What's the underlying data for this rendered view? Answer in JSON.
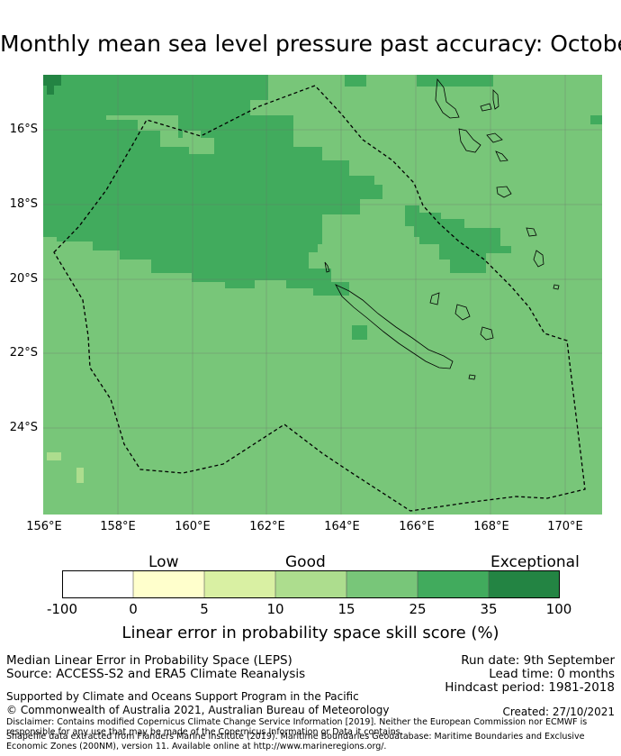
{
  "title": "Monthly mean sea level pressure past accuracy: October",
  "map": {
    "lon_labels": [
      "156°E",
      "158°E",
      "160°E",
      "162°E",
      "164°E",
      "166°E",
      "168°E",
      "170°E"
    ],
    "lat_labels": [
      "16°S",
      "18°S",
      "20°S",
      "22°S",
      "24°S"
    ],
    "colors": {
      "c15_25": "#78c679",
      "c25_35": "#41ab5d",
      "c35_100": "#238443",
      "c10_15": "#addd8e",
      "c5_10": "#d9f0a3"
    }
  },
  "colorbar": {
    "categories": [
      "Low",
      "Good",
      "Exceptional"
    ],
    "ticks": [
      "-100",
      "0",
      "5",
      "10",
      "15",
      "25",
      "35",
      "100"
    ],
    "colors": [
      "#ffffff",
      "#ffffcc",
      "#d9f0a3",
      "#addd8e",
      "#78c679",
      "#41ab5d",
      "#238443"
    ],
    "title": "Linear error in probability space skill score (%)"
  },
  "footer": {
    "left1": "Median Linear Error in Probability Space (LEPS)",
    "left2": "Source: ACCESS-S2 and ERA5 Climate Reanalysis",
    "right1": "Run date: 9th September",
    "right2": "Lead time: 0 months",
    "right3": "Hindcast period: 1981-2018",
    "support": "Supported by Climate and Oceans Support Program in the Pacific",
    "copyright": "© Commonwealth of Australia 2021, Australian Bureau of Meteorology",
    "created": "Created: 27/10/2021",
    "disclaimer": "Disclaimer: Contains modified Copernicus Climate Change Service Information [2019]. Neither the European Commission nor ECMWF is responsible for any use that may be made of the Copernicus Information or Data it contains.",
    "shapefile": "Shapefile data extracted from Flanders Marine Institute (2019). Maritime Boundaries Geodatabase: Maritime Boundaries and Exclusive Economic Zones (200NM), version 11. Available online at http://www.marineregions.org/."
  }
}
